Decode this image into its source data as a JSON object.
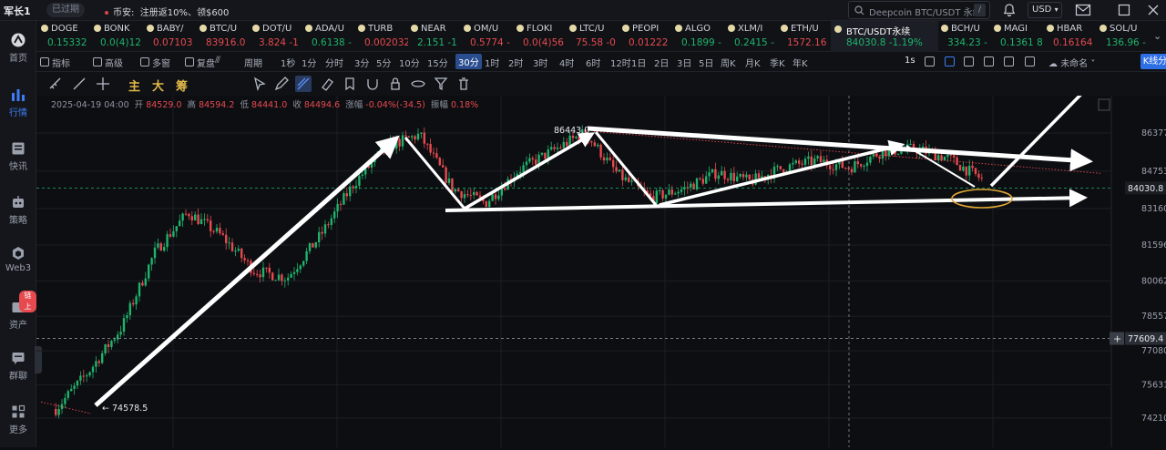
{
  "titlebar": {
    "user": "军长1",
    "expired_badge": "已过期",
    "notice_prefix": "币安:",
    "notice_text": "注册返10%、领$600",
    "search_placeholder": "Deepcoin BTC/USDT 永续",
    "search_key": "/",
    "currency": "USD"
  },
  "sidebar": {
    "items": [
      {
        "label": "首页",
        "icon": "home-icon"
      },
      {
        "label": "行情",
        "icon": "market-chart-icon",
        "active": true
      },
      {
        "label": "快讯",
        "icon": "news-icon"
      },
      {
        "label": "策略",
        "icon": "robot-icon"
      },
      {
        "label": "Web3",
        "icon": "web3-icon"
      },
      {
        "label": "资产",
        "icon": "wallet-icon",
        "badge": "链上"
      },
      {
        "label": "群聊",
        "icon": "chat-icon"
      },
      {
        "label": "更多",
        "icon": "grid-more-icon"
      }
    ]
  },
  "tickers": [
    {
      "name": "DOGE",
      "price": "0.15332",
      "color": "up"
    },
    {
      "name": "BONK",
      "price": "0.0(4)12",
      "color": "up"
    },
    {
      "name": "BABY/",
      "price": "0.07103",
      "color": "dn"
    },
    {
      "name": "BTC/U",
      "price": "83916.0",
      "color": "dn"
    },
    {
      "name": "DOT/U",
      "price": "3.824  -1",
      "color": "dn"
    },
    {
      "name": "ADA/U",
      "price": "0.6138  -",
      "color": "up"
    },
    {
      "name": "TURB",
      "price": "0.002032",
      "color": "dn"
    },
    {
      "name": "NEAR",
      "price": "2.151  -1",
      "color": "up"
    },
    {
      "name": "OM/U",
      "price": "0.5774  -",
      "color": "dn"
    },
    {
      "name": "FLOKI",
      "price": "0.0(4)56",
      "color": "dn"
    },
    {
      "name": "LTC/U",
      "price": "75.58  -0",
      "color": "dn"
    },
    {
      "name": "PEOPI",
      "price": "0.01222",
      "color": "dn"
    },
    {
      "name": "ALGO",
      "price": "0.1899  -",
      "color": "up"
    },
    {
      "name": "XLM/I",
      "price": "0.2415  -",
      "color": "up"
    },
    {
      "name": "ETH/U",
      "price": "1572.16",
      "color": "dn"
    },
    {
      "name": "BTC/USDT永续",
      "price": "84030.8  -1.19%",
      "color": "up",
      "selected": true
    },
    {
      "name": "BCH/U",
      "price": "334.23  -",
      "color": "up"
    },
    {
      "name": "MAGI",
      "price": "0.1361  8",
      "color": "up"
    },
    {
      "name": "HBAR",
      "price": "0.16164",
      "color": "dn"
    },
    {
      "name": "SOL/U",
      "price": "136.96  -",
      "color": "up"
    }
  ],
  "periodbar": {
    "tools": [
      "指标",
      "高级",
      "多窗",
      "复盘"
    ],
    "period_label": "周期",
    "periods": [
      "1秒",
      "1分",
      "分时",
      "3分",
      "5分",
      "10分",
      "15分",
      "30分",
      "1时",
      "2时",
      "3时",
      "4时",
      "6时",
      "12时",
      "1日",
      "2日",
      "3日",
      "5日",
      "周K",
      "月K",
      "季K",
      "年K"
    ],
    "selected_period": "30分",
    "right_interval": "1s",
    "layout_name": "未命名",
    "kline_button": "K线分析"
  },
  "drawbar": {
    "labels": [
      "主",
      "大",
      "筹"
    ]
  },
  "info": {
    "date": "2025-04-19 04:00",
    "open_label": "开",
    "open": "84529.0",
    "high_label": "高",
    "high": "84594.2",
    "low_label": "低",
    "low": "84441.0",
    "close_label": "收",
    "close": "84494.6",
    "change_label": "涨幅",
    "change": "-0.04%(-34.5)",
    "amp_label": "振幅",
    "amp": "0.18%"
  },
  "chart_data": {
    "type": "candlestick",
    "symbol": "BTC/USDT永续",
    "interval": "30分",
    "price_axis_ticks": [
      "86377.4",
      "84753.6",
      "83160.2",
      "81596.9",
      "80062.9",
      "78557.5",
      "77080.9",
      "75631.8",
      "74210.0"
    ],
    "current_price": "84030.8",
    "crosshair_price": "77609.4",
    "annotations": {
      "high_label": "86443.0",
      "low_label": "74578.5"
    },
    "close_path": [
      74600,
      76200,
      78100,
      81300,
      83000,
      82000,
      80500,
      80200,
      82000,
      84200,
      85800,
      86300,
      84000,
      83400,
      84800,
      85600,
      86400,
      84600,
      83600,
      84000,
      84700,
      84300,
      84900,
      85200,
      84900,
      85600,
      85700,
      85300,
      84400
    ]
  }
}
